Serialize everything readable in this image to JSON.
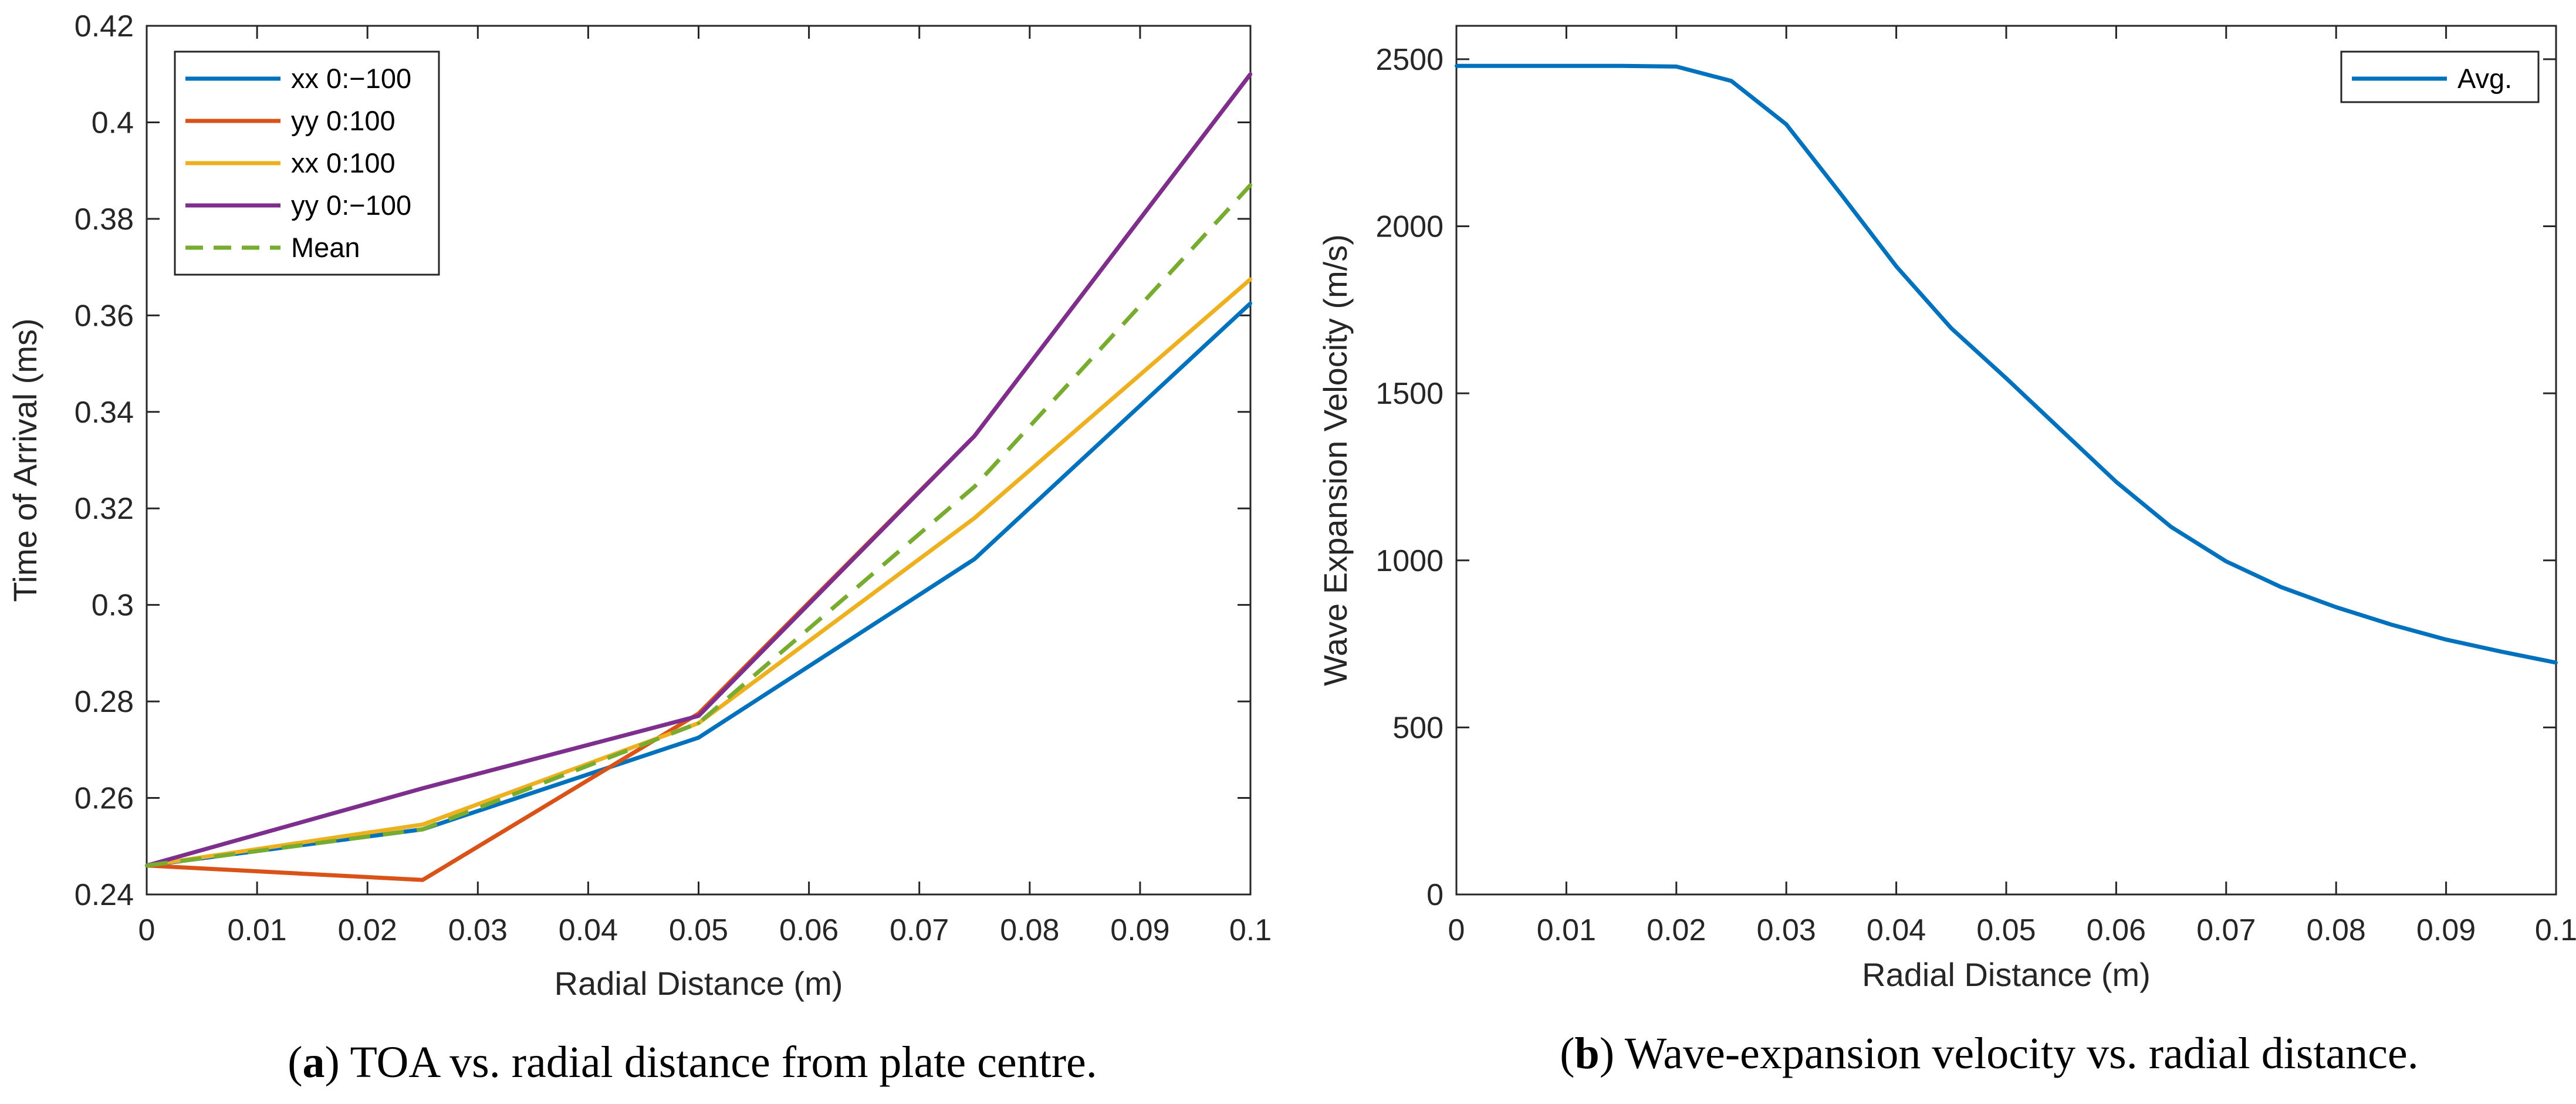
{
  "chart_data": [
    {
      "type": "line",
      "panel": "a",
      "caption_label": "a",
      "caption_text": "TOA vs. radial distance from plate centre.",
      "xlabel": "Radial Distance (m)",
      "ylabel": "Time of Arrival (ms)",
      "xlim": [
        0,
        0.1
      ],
      "ylim": [
        0.24,
        0.42
      ],
      "xticks": [
        0,
        0.01,
        0.02,
        0.03,
        0.04,
        0.05,
        0.06,
        0.07,
        0.08,
        0.09,
        0.1
      ],
      "xtick_labels": [
        "0",
        "0.01",
        "0.02",
        "0.03",
        "0.04",
        "0.05",
        "0.06",
        "0.07",
        "0.08",
        "0.09",
        "0.1"
      ],
      "yticks": [
        0.24,
        0.26,
        0.28,
        0.3,
        0.32,
        0.34,
        0.36,
        0.38,
        0.4,
        0.42
      ],
      "ytick_labels": [
        "0.24",
        "0.26",
        "0.28",
        "0.3",
        "0.32",
        "0.34",
        "0.36",
        "0.38",
        "0.4",
        "0.42"
      ],
      "legend_position": "top-left",
      "grid": false,
      "series": [
        {
          "name": "xx 0:−100",
          "color": "#0072BD",
          "dash": "solid",
          "x": [
            0,
            0.025,
            0.05,
            0.075,
            0.1
          ],
          "y": [
            0.246,
            0.2535,
            0.2725,
            0.3095,
            0.3625
          ]
        },
        {
          "name": "yy 0:100",
          "color": "#D95319",
          "dash": "solid",
          "x": [
            0,
            0.025,
            0.05,
            0.075,
            0.1
          ],
          "y": [
            0.246,
            0.243,
            0.2775,
            0.335,
            0.41
          ]
        },
        {
          "name": "xx 0:100",
          "color": "#EDB120",
          "dash": "solid",
          "x": [
            0,
            0.025,
            0.05,
            0.075,
            0.1
          ],
          "y": [
            0.246,
            0.2545,
            0.2755,
            0.318,
            0.3675
          ]
        },
        {
          "name": "yy 0:−100",
          "color": "#7E2F8E",
          "dash": "solid",
          "x": [
            0,
            0.025,
            0.05,
            0.075,
            0.1
          ],
          "y": [
            0.246,
            0.262,
            0.277,
            0.335,
            0.41
          ]
        },
        {
          "name": "Mean",
          "color": "#77AC30",
          "dash": "dashed",
          "x": [
            0,
            0.025,
            0.05,
            0.075,
            0.1
          ],
          "y": [
            0.246,
            0.2535,
            0.2755,
            0.3245,
            0.387
          ]
        }
      ]
    },
    {
      "type": "line",
      "panel": "b",
      "caption_label": "b",
      "caption_text": "Wave-expansion velocity vs. radial distance.",
      "xlabel": "Radial Distance (m)",
      "ylabel": "Wave Expansion Velocity (m/s)",
      "xlim": [
        0,
        0.1
      ],
      "ylim": [
        0,
        2600
      ],
      "xticks": [
        0,
        0.01,
        0.02,
        0.03,
        0.04,
        0.05,
        0.06,
        0.07,
        0.08,
        0.09,
        0.1
      ],
      "xtick_labels": [
        "0",
        "0.01",
        "0.02",
        "0.03",
        "0.04",
        "0.05",
        "0.06",
        "0.07",
        "0.08",
        "0.09",
        "0.1"
      ],
      "yticks": [
        0,
        500,
        1000,
        1500,
        2000,
        2500
      ],
      "ytick_labels": [
        "0",
        "500",
        "1000",
        "1500",
        "2000",
        "2500"
      ],
      "legend_position": "top-right",
      "grid": false,
      "series": [
        {
          "name": "Avg.",
          "color": "#0072BD",
          "dash": "solid",
          "x": [
            0,
            0.005,
            0.01,
            0.015,
            0.02,
            0.025,
            0.03,
            0.035,
            0.04,
            0.045,
            0.05,
            0.055,
            0.06,
            0.065,
            0.07,
            0.075,
            0.08,
            0.085,
            0.09,
            0.095,
            0.1
          ],
          "y": [
            2480,
            2480,
            2480,
            2480,
            2478,
            2435,
            2305,
            2095,
            1880,
            1695,
            1545,
            1390,
            1235,
            1100,
            997,
            920,
            860,
            808,
            763,
            727,
            694
          ]
        }
      ]
    }
  ]
}
